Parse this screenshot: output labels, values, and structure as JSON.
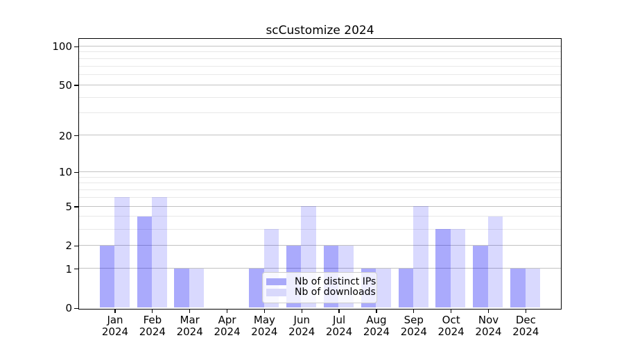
{
  "chart_data": {
    "type": "bar",
    "title": "scCustomize 2024",
    "categories": [
      "Jan",
      "Feb",
      "Mar",
      "Apr",
      "May",
      "Jun",
      "Jul",
      "Aug",
      "Sep",
      "Oct",
      "Nov",
      "Dec"
    ],
    "year_label": "2024",
    "series": [
      {
        "name": "Nb of distinct IPs",
        "values": [
          2,
          4,
          1,
          0,
          1,
          2,
          2,
          1,
          1,
          3,
          2,
          1
        ],
        "bar_color": "rgba(8,8,246,0.345)",
        "legend_color": "#a9a9f9"
      },
      {
        "name": "Nb of downloads",
        "values": [
          6,
          6,
          1,
          0,
          3,
          5,
          2,
          1,
          5,
          3,
          4,
          1
        ],
        "bar_color": "rgba(8,8,246,0.152)",
        "legend_color": "#d8d8fb"
      }
    ],
    "xlabel": "",
    "ylabel": "",
    "y_axis": {
      "scale": "log1p",
      "ylim": [
        0,
        113.8
      ],
      "major_ticks": [
        0,
        1,
        2,
        5,
        10,
        20,
        50,
        100
      ],
      "minor_ticks": [
        3,
        4,
        6,
        7,
        8,
        9,
        30,
        40,
        60,
        70,
        80,
        90
      ]
    },
    "grid": true,
    "legend_position": "lower center"
  }
}
